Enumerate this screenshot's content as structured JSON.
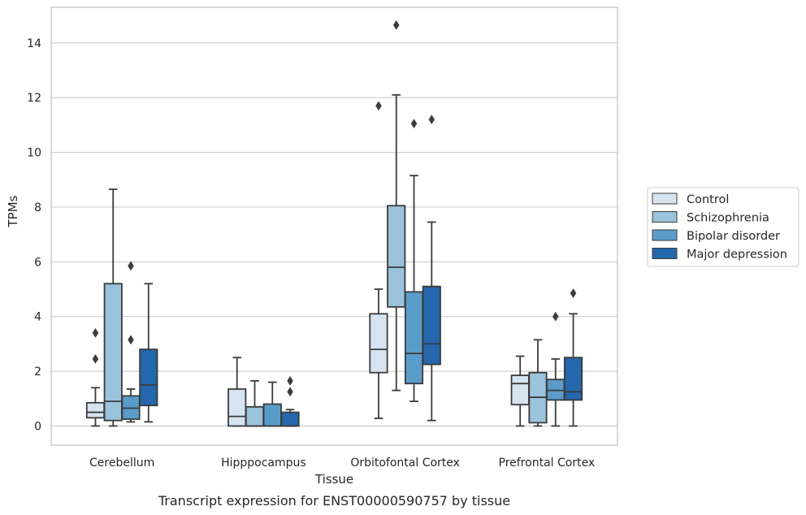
{
  "chart_data": {
    "type": "box",
    "xlabel": "Tissue",
    "ylabel": "TPMs",
    "caption": "Transcript expression for ENST00000590757 by tissue",
    "categories": [
      "Cerebellum",
      "Hipppocampus",
      "Orbitofontal Cortex",
      "Prefrontal Cortex"
    ],
    "ylim": [
      -0.7,
      15.3
    ],
    "yticks": [
      0,
      2,
      4,
      6,
      8,
      10,
      12,
      14
    ],
    "grid": "horizontal",
    "legend_position": "right",
    "series": [
      {
        "name": "Control",
        "color": "#d6e4f2",
        "boxes": [
          {
            "min": 0.0,
            "q1": 0.3,
            "median": 0.5,
            "q3": 0.85,
            "max": 1.4,
            "outliers": [
              2.45,
              3.4
            ]
          },
          {
            "min": 0.0,
            "q1": 0.0,
            "median": 0.35,
            "q3": 1.35,
            "max": 2.5,
            "outliers": []
          },
          {
            "min": 0.28,
            "q1": 1.95,
            "median": 2.8,
            "q3": 4.1,
            "max": 5.0,
            "outliers": [
              11.7
            ]
          },
          {
            "min": 0.0,
            "q1": 0.78,
            "median": 1.55,
            "q3": 1.85,
            "max": 2.55,
            "outliers": []
          }
        ]
      },
      {
        "name": "Schizophrenia",
        "color": "#9ac3dc",
        "boxes": [
          {
            "min": 0.0,
            "q1": 0.2,
            "median": 0.9,
            "q3": 5.2,
            "max": 8.65,
            "outliers": []
          },
          {
            "min": 0.0,
            "q1": 0.0,
            "median": 0.0,
            "q3": 0.7,
            "max": 1.65,
            "outliers": []
          },
          {
            "min": 1.3,
            "q1": 4.35,
            "median": 5.8,
            "q3": 8.05,
            "max": 12.1,
            "outliers": [
              14.65
            ]
          },
          {
            "min": 0.0,
            "q1": 0.12,
            "median": 1.05,
            "q3": 1.95,
            "max": 3.15,
            "outliers": []
          }
        ]
      },
      {
        "name": "Bipolar disorder",
        "color": "#5a9cc9",
        "boxes": [
          {
            "min": 0.15,
            "q1": 0.25,
            "median": 0.65,
            "q3": 1.1,
            "max": 1.35,
            "outliers": [
              3.15,
              5.85
            ]
          },
          {
            "min": 0.0,
            "q1": 0.0,
            "median": 0.0,
            "q3": 0.8,
            "max": 1.6,
            "outliers": []
          },
          {
            "min": 0.9,
            "q1": 1.55,
            "median": 2.65,
            "q3": 4.9,
            "max": 9.15,
            "outliers": [
              11.05
            ]
          },
          {
            "min": 0.0,
            "q1": 0.95,
            "median": 1.3,
            "q3": 1.7,
            "max": 2.45,
            "outliers": [
              4.0
            ]
          }
        ]
      },
      {
        "name": "Major depression",
        "color": "#2467ad",
        "boxes": [
          {
            "min": 0.15,
            "q1": 0.75,
            "median": 1.5,
            "q3": 2.8,
            "max": 5.2,
            "outliers": []
          },
          {
            "min": 0.0,
            "q1": 0.0,
            "median": 0.0,
            "q3": 0.5,
            "max": 0.6,
            "outliers": [
              1.25,
              1.65
            ]
          },
          {
            "min": 0.2,
            "q1": 2.25,
            "median": 3.0,
            "q3": 5.1,
            "max": 7.45,
            "outliers": [
              11.2
            ]
          },
          {
            "min": 0.0,
            "q1": 0.95,
            "median": 1.25,
            "q3": 2.5,
            "max": 4.1,
            "outliers": [
              4.85
            ]
          }
        ]
      }
    ]
  }
}
